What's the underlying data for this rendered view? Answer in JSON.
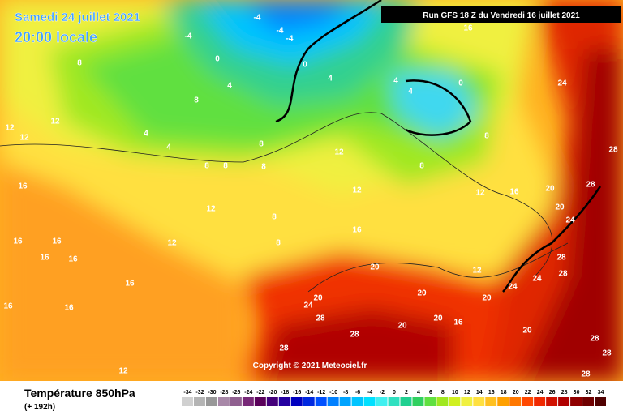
{
  "header": {
    "date": "Samedi 24 juillet 2021",
    "time": "20:00 locale",
    "run": "Run GFS 18 Z du Vendredi 16 juillet 2021"
  },
  "copyright": "Copyright © 2021 Meteociel.fr",
  "footer": {
    "title": "Température 850hPa",
    "lead": "(+ 192h)"
  },
  "legend_scale": {
    "values": [
      -34,
      -32,
      -30,
      -28,
      -26,
      -24,
      -22,
      -20,
      -18,
      -16,
      -14,
      -12,
      -10,
      -8,
      -6,
      -4,
      -2,
      0,
      2,
      4,
      6,
      8,
      10,
      12,
      14,
      16,
      18,
      20,
      22,
      24,
      26,
      28,
      30,
      32,
      34
    ],
    "colors": [
      "#d0d0d0",
      "#b4b4b4",
      "#989898",
      "#a888a8",
      "#906090",
      "#782878",
      "#5a005a",
      "#44007a",
      "#2400a0",
      "#0000c0",
      "#0028e0",
      "#0050ff",
      "#0080ff",
      "#00a4ff",
      "#00c4ff",
      "#00e0ff",
      "#40f0f0",
      "#30e0c0",
      "#20d090",
      "#30d060",
      "#60e040",
      "#a0e820",
      "#d0f020",
      "#f0f040",
      "#ffe040",
      "#ffc020",
      "#ffa000",
      "#ff7800",
      "#ff4800",
      "#f02800",
      "#d01000",
      "#b00000",
      "#900000",
      "#700000",
      "#500000"
    ]
  },
  "map": {
    "contour_labels": [
      4,
      4,
      4,
      4,
      4,
      4,
      -4,
      -4,
      -4,
      -4,
      0,
      0,
      0,
      8,
      8,
      8,
      8,
      8,
      8,
      8,
      8,
      8,
      8,
      12,
      12,
      12,
      12,
      12,
      12,
      12,
      12,
      12,
      12,
      16,
      16,
      16,
      16,
      16,
      16,
      16,
      16,
      16,
      16,
      16,
      16,
      20,
      20,
      20,
      20,
      20,
      20,
      20,
      20,
      20,
      24,
      24,
      24,
      24,
      24,
      28,
      28,
      28,
      28,
      28,
      28,
      28,
      28,
      28,
      28
    ]
  }
}
